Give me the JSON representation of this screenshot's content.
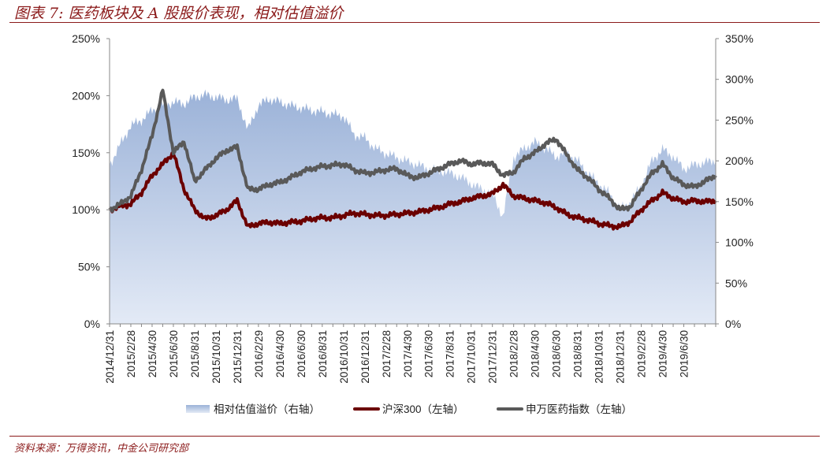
{
  "title": "图表 7: 医药板块及 A 股股价表现，相对估值溢价",
  "source": "资料来源：万得资讯，中金公司研究部",
  "colors": {
    "premium_top": "#9bb2d8",
    "premium_bottom": "#e3eaf6",
    "csi300": "#6b0000",
    "pharma": "#595959",
    "accent": "#8b1a1a"
  },
  "chart_data": {
    "type": "line",
    "x_start": "2014/12",
    "x_step": "1 month",
    "x_tick_labels": [
      "2014/12/31",
      "2015/2/28",
      "2015/4/30",
      "2015/6/30",
      "2015/8/31",
      "2015/10/31",
      "2015/12/31",
      "2016/2/29",
      "2016/4/30",
      "2016/6/30",
      "2016/8/31",
      "2016/10/31",
      "2016/12/31",
      "2017/2/28",
      "2017/4/30",
      "2017/6/30",
      "2017/8/31",
      "2017/10/31",
      "2017/12/31",
      "2018/2/28",
      "2018/4/30",
      "2018/6/30",
      "2018/8/31",
      "2018/10/31",
      "2018/12/31",
      "2019/2/28",
      "2019/4/30",
      "2019/6/30"
    ],
    "left_axis": {
      "ylim": [
        0,
        250
      ],
      "ticks": [
        "0%",
        "50%",
        "100%",
        "150%",
        "200%",
        "250%"
      ]
    },
    "right_axis": {
      "ylim": [
        0,
        350
      ],
      "ticks": [
        "0%",
        "50%",
        "100%",
        "150%",
        "200%",
        "250%",
        "300%",
        "350%"
      ]
    },
    "series": [
      {
        "name": "相对估值溢价（右轴）",
        "axis": "right",
        "kind": "area",
        "values": [
          195,
          220,
          243,
          250,
          262,
          268,
          272,
          270,
          278,
          281,
          278,
          275,
          276,
          238,
          268,
          276,
          272,
          268,
          265,
          262,
          260,
          257,
          255,
          232,
          228,
          215,
          209,
          204,
          199,
          195,
          190,
          188,
          185,
          180,
          172,
          165,
          160,
          131,
          204,
          215,
          223,
          215,
          205,
          210,
          200,
          185,
          172,
          160,
          141,
          150,
          170,
          200,
          214,
          205,
          190,
          195,
          198,
          200
        ]
      },
      {
        "name": "沪深300（左轴）",
        "axis": "left",
        "kind": "line",
        "values": [
          100,
          103,
          105,
          115,
          130,
          140,
          150,
          118,
          100,
          92,
          95,
          100,
          108,
          85,
          88,
          89,
          88,
          89,
          90,
          92,
          93,
          93,
          95,
          97,
          96,
          95,
          95,
          96,
          97,
          98,
          100,
          102,
          105,
          107,
          110,
          112,
          114,
          122,
          112,
          110,
          108,
          106,
          102,
          96,
          93,
          91,
          88,
          86,
          85,
          90,
          100,
          108,
          115,
          110,
          107,
          108,
          107,
          108
        ]
      },
      {
        "name": "申万医药指数（左轴）",
        "axis": "left",
        "kind": "line",
        "values": [
          100,
          105,
          112,
          135,
          165,
          205,
          150,
          160,
          125,
          135,
          145,
          152,
          155,
          118,
          118,
          122,
          124,
          128,
          133,
          136,
          138,
          139,
          140,
          135,
          132,
          133,
          135,
          136,
          130,
          128,
          132,
          136,
          140,
          143,
          140,
          141,
          140,
          130,
          133,
          145,
          150,
          158,
          162,
          148,
          135,
          128,
          118,
          110,
          100,
          103,
          118,
          132,
          140,
          128,
          122,
          120,
          125,
          130
        ]
      }
    ],
    "legend": {
      "position": "bottom",
      "items": [
        "相对估值溢价（右轴）",
        "沪深300（左轴）",
        "申万医药指数（左轴）"
      ]
    }
  }
}
